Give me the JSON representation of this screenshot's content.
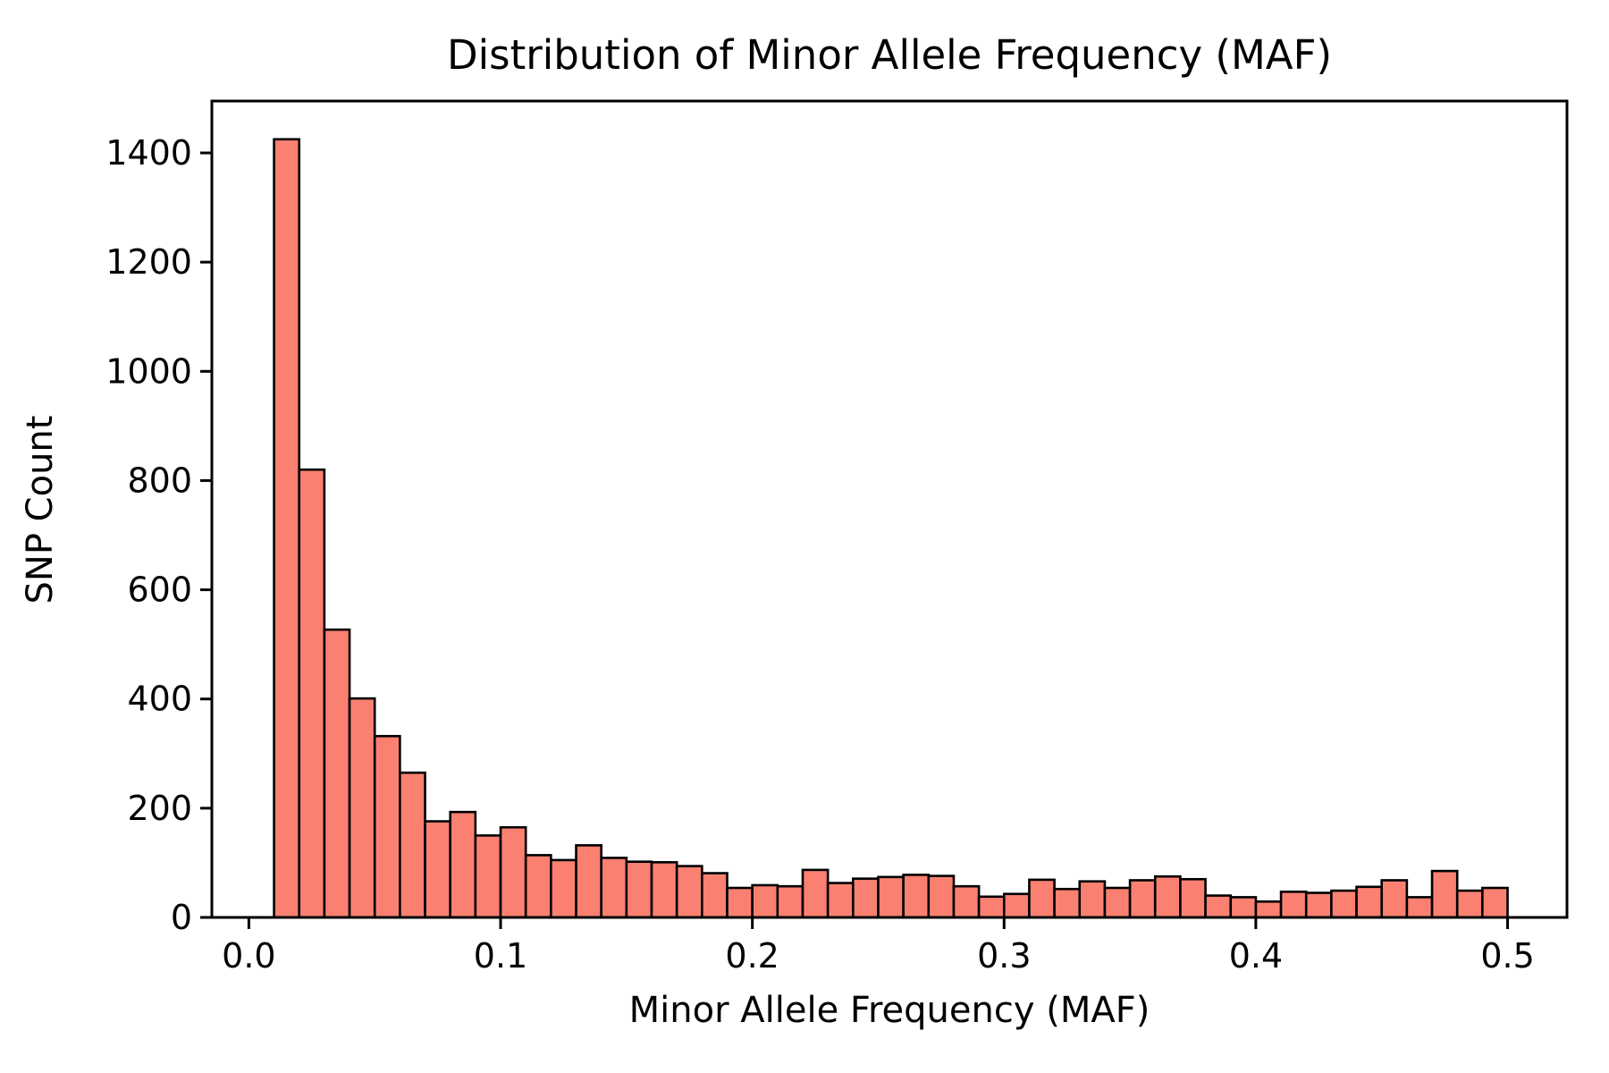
{
  "figure": {
    "background": "#ffffff",
    "text_color": "#000000"
  },
  "chart_data": {
    "type": "bar",
    "subtype": "histogram",
    "title": "Distribution of Minor Allele Frequency (MAF)",
    "xlabel": "Minor Allele Frequency (MAF)",
    "ylabel": "SNP Count",
    "grid": false,
    "legend": false,
    "bar_color": "#FA8072",
    "bar_edge_color": "#000000",
    "bin_width": 0.01,
    "bin_starts": [
      0.01,
      0.02,
      0.03,
      0.04,
      0.05,
      0.06,
      0.07,
      0.08,
      0.09,
      0.1,
      0.11,
      0.12,
      0.13,
      0.14,
      0.15,
      0.16,
      0.17,
      0.18,
      0.19,
      0.2,
      0.21,
      0.22,
      0.23,
      0.24,
      0.25,
      0.26,
      0.27,
      0.28,
      0.29,
      0.3,
      0.31,
      0.32,
      0.33,
      0.34,
      0.35,
      0.36,
      0.37,
      0.38,
      0.39,
      0.4,
      0.41,
      0.42,
      0.43,
      0.44,
      0.45,
      0.46,
      0.47,
      0.48,
      0.49
    ],
    "values": [
      1425,
      820,
      527,
      401,
      332,
      265,
      176,
      193,
      150,
      165,
      114,
      105,
      132,
      109,
      102,
      101,
      94,
      81,
      54,
      59,
      57,
      87,
      63,
      71,
      74,
      78,
      76,
      57,
      38,
      43,
      69,
      52,
      66,
      54,
      68,
      75,
      70,
      40,
      37,
      29,
      47,
      45,
      49,
      56,
      68,
      37,
      85,
      49,
      54
    ],
    "x_ticks": [
      0.0,
      0.1,
      0.2,
      0.3,
      0.4,
      0.5
    ],
    "x_tick_labels": [
      "0.0",
      "0.1",
      "0.2",
      "0.3",
      "0.4",
      "0.5"
    ],
    "y_ticks": [
      0,
      200,
      400,
      600,
      800,
      1000,
      1200,
      1400
    ],
    "y_tick_labels": [
      "0",
      "200",
      "400",
      "600",
      "800",
      "1000",
      "1200",
      "1400"
    ],
    "xlim": [
      -0.0147,
      0.5236
    ],
    "ylim": [
      0,
      1495
    ]
  }
}
